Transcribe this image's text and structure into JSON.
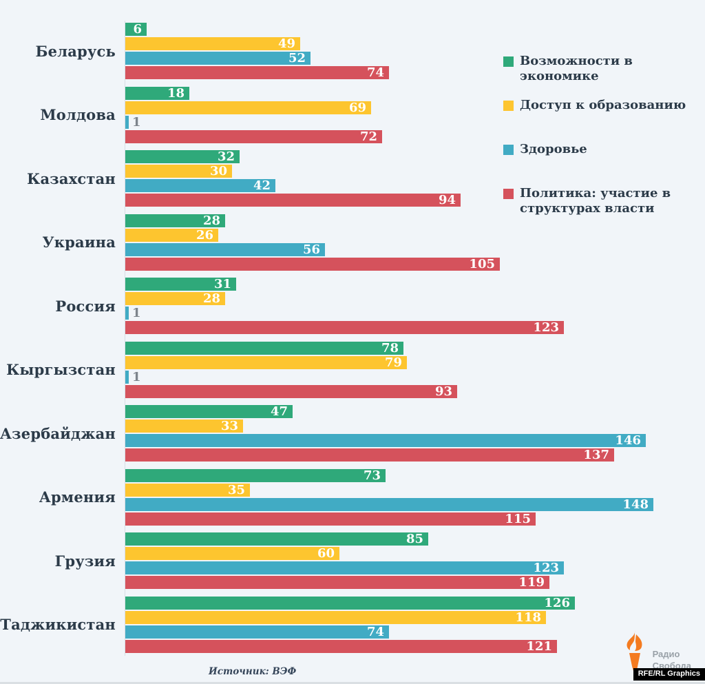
{
  "chart_data": {
    "type": "bar",
    "orientation": "horizontal",
    "categories": [
      "Беларусь",
      "Молдова",
      "Казахстан",
      "Украина",
      "Россия",
      "Кыргызстан",
      "Азербайджан",
      "Армения",
      "Грузия",
      "Таджикистан"
    ],
    "series": [
      {
        "key": "economy",
        "name": "Возможности в экономике",
        "color": "#2fa97a",
        "values": [
          6,
          18,
          32,
          28,
          31,
          78,
          47,
          73,
          85,
          126
        ]
      },
      {
        "key": "education",
        "name": "Доступ к образованию",
        "color": "#fdc52f",
        "values": [
          49,
          69,
          30,
          26,
          28,
          79,
          33,
          35,
          60,
          118
        ]
      },
      {
        "key": "health",
        "name": "Здоровье",
        "color": "#41abc4",
        "values": [
          52,
          1,
          42,
          56,
          1,
          1,
          146,
          148,
          123,
          74
        ]
      },
      {
        "key": "politics",
        "name": "Политика: участие в структурах власти",
        "color": "#d5525c",
        "values": [
          74,
          72,
          94,
          105,
          123,
          93,
          137,
          115,
          119,
          121
        ]
      }
    ],
    "legend_items": [
      {
        "series": "economy",
        "lines": [
          "Возможности в",
          "экономике"
        ]
      },
      {
        "series": "education",
        "lines": [
          "Доступ к образованию"
        ]
      },
      {
        "series": "health",
        "lines": [
          "Здоровье"
        ]
      },
      {
        "series": "politics",
        "lines": [
          "Политика: участие в",
          "структурах власти"
        ]
      }
    ],
    "xlim": [
      0,
      150
    ],
    "value_labels": true,
    "grid": false,
    "legend_position": "top-right"
  },
  "footer": {
    "source": "Источник: ВЭФ",
    "brand": [
      "Радио",
      "Свобода"
    ],
    "credit": "RFE/RL Graphics",
    "brand_color": "#f47b20"
  }
}
